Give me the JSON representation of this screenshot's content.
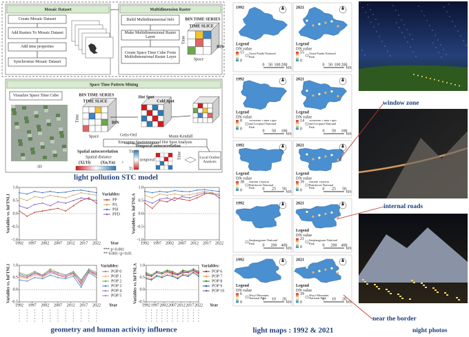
{
  "flowchart": {
    "mosaic": {
      "title": "Mosaic Dataset",
      "steps": [
        "Create Mosaic Dataset",
        "Add Rasters To Mosaic Dataset",
        "Add time properties",
        "Synchronize Mosaic Dataset"
      ]
    },
    "multidim": {
      "title": "Multidimension Raster",
      "steps": [
        "Build Multidimensional Info",
        "Make Multidimensional Raster Layer",
        "Create Space Time Cube From Multidimensional Raster Layer"
      ],
      "cube_labels": [
        "BIN TIME SERIES",
        "TIME SLICE",
        "BIN",
        "Time",
        "Space"
      ]
    },
    "mining": {
      "title": "Space Time Pattern Mining",
      "visualize": "Visualize Space Time Cube",
      "cube_labels": [
        "BIN TIME SERIES",
        "TIME SLICE",
        "BIN",
        "Time",
        "Space"
      ],
      "hot": "Hot Spot",
      "cold": "Cold Spot",
      "getis": "Getis-Ord",
      "mann": "Mann-Kendall",
      "emerging": "Emerging Spatiotemporal Hot Spot Analysis",
      "local": "Local Outlier Analysis",
      "spatial_auto": "Spatial autocorrelation",
      "temporal_auto": "Temporal autocorrelation",
      "spatial_distance": "Spatial distance",
      "xi": "(Xi,Yi)",
      "xn": "(Xn,Yn)",
      "temporal_distance": "temporal distance",
      "ti": "Ti",
      "tn": "Tn",
      "time": "Time",
      "label_3d": "3D",
      "plus": "+"
    },
    "caption": "light pollution STC model"
  },
  "chart_data": [
    {
      "type": "line",
      "ylabel": "Variables vs. lnFTNLI",
      "xlabel": "Year",
      "legend": "right",
      "legend_title": "Variables:",
      "notes": [
        "*** p<0.001",
        "** 0.001<p<0.01"
      ],
      "x": [
        1992,
        1995,
        1998,
        2001,
        2004,
        2007,
        2010,
        2013,
        2016,
        2019,
        2022
      ],
      "xlim": [
        1992,
        2022
      ],
      "xticks": [
        1992,
        1997,
        2002,
        2007,
        2012,
        2017,
        2022
      ],
      "ylim": [
        -1,
        1
      ],
      "yticks": [
        {
          "value": -1,
          "label": "-1.0"
        },
        {
          "value": -0.5,
          "label": "-0.5"
        },
        {
          "value": 0,
          "label": "0.0"
        },
        {
          "value": 0.5,
          "label": "0.5"
        },
        {
          "value": 1,
          "label": "1.0"
        }
      ],
      "series": [
        {
          "name": "PP",
          "color": "#c0392b",
          "values": [
            0.1,
            -0.1,
            0.05,
            0.1,
            0.15,
            0.2,
            0.1,
            0.3,
            0.5,
            0.6,
            0.4
          ]
        },
        {
          "name": "PA",
          "color": "#c9a15a",
          "values": [
            0.6,
            0.5,
            0.65,
            0.6,
            0.7,
            0.65,
            0.6,
            0.7,
            0.8,
            0.75,
            0.7
          ]
        },
        {
          "name": "PSI",
          "color": "#3a6fc4",
          "values": [
            0.8,
            0.75,
            0.85,
            0.8,
            0.85,
            0.8,
            0.82,
            0.88,
            0.9,
            0.85,
            0.8
          ]
        },
        {
          "name": "PFD",
          "color": "#7e57c2",
          "values": [
            0.3,
            0.2,
            0.35,
            0.4,
            0.3,
            0.45,
            0.4,
            0.5,
            0.6,
            0.55,
            0.5
          ]
        }
      ]
    },
    {
      "type": "line",
      "ylabel": "Variables vs. lnFTNLA",
      "legend": "none",
      "x": [
        1992,
        1995,
        1998,
        2001,
        2004,
        2007,
        2010,
        2013,
        2016,
        2019,
        2022
      ],
      "xlim": [
        1992,
        2022
      ],
      "xticks": [
        1992,
        1997,
        2002,
        2007,
        2012,
        2017,
        2022
      ],
      "ylim": [
        -1,
        1
      ],
      "yticks": [
        {
          "value": -1,
          "label": "-1.0"
        },
        {
          "value": -0.5,
          "label": "-0.5"
        },
        {
          "value": 0,
          "label": "0.0"
        },
        {
          "value": 0.5,
          "label": "0.5"
        },
        {
          "value": 1,
          "label": "1.0"
        }
      ],
      "series": [
        {
          "name": "PP",
          "color": "#c0392b",
          "values": [
            0.4,
            0.2,
            0.5,
            0.45,
            0.6,
            0.55,
            0.5,
            0.6,
            0.75,
            0.8,
            0.6
          ]
        },
        {
          "name": "PA",
          "color": "#c9a15a",
          "values": [
            0.7,
            0.6,
            0.75,
            0.7,
            0.75,
            0.7,
            0.72,
            0.78,
            0.85,
            0.8,
            0.75
          ]
        },
        {
          "name": "PSI",
          "color": "#3a6fc4",
          "values": [
            0.85,
            0.8,
            0.85,
            0.82,
            0.88,
            0.85,
            0.84,
            0.9,
            0.92,
            0.88,
            0.85
          ]
        },
        {
          "name": "PFD",
          "color": "#7e57c2",
          "values": [
            0.5,
            0.4,
            0.55,
            0.6,
            0.5,
            0.65,
            0.6,
            0.7,
            0.8,
            0.75,
            0.7
          ]
        }
      ]
    },
    {
      "type": "line",
      "ylabel": "Variables vs. lnFTNLI",
      "xlabel": "Year",
      "legend": "right",
      "legend_title": "Variables:",
      "x": [
        1992,
        1995,
        1998,
        2001,
        2004,
        2007,
        2010,
        2013,
        2016,
        2019,
        2022
      ],
      "xlim": [
        1992,
        2022
      ],
      "xticks": [
        1992,
        1997,
        2002,
        2007,
        2012,
        2017,
        2022
      ],
      "ylim": [
        -0.5,
        1
      ],
      "yticks": [
        {
          "value": -0.5,
          "label": "-0.5"
        },
        {
          "value": 0,
          "label": "0.0"
        },
        {
          "value": 0.5,
          "label": "0.5"
        },
        {
          "value": 1,
          "label": "1.0"
        }
      ],
      "series": [
        {
          "name": "POP 0",
          "color": "#e06666",
          "values": [
            0.6,
            0.5,
            0.7,
            0.55,
            0.8,
            0.6,
            0.5,
            0.7,
            0.2,
            0.8,
            0.6
          ]
        },
        {
          "name": "POP 1",
          "color": "#f6b26b",
          "values": [
            0.5,
            0.45,
            0.6,
            0.5,
            0.7,
            0.65,
            0.55,
            0.6,
            0.3,
            0.75,
            0.55
          ]
        },
        {
          "name": "POP 2",
          "color": "#6aa84f",
          "values": [
            0.7,
            0.6,
            0.75,
            0.6,
            0.85,
            0.7,
            0.6,
            0.75,
            0.4,
            0.85,
            0.7
          ]
        },
        {
          "name": "POP 3",
          "color": "#3d85c6",
          "values": [
            0.4,
            0.35,
            0.5,
            0.45,
            0.6,
            0.5,
            0.45,
            0.55,
            0.1,
            0.7,
            0.5
          ]
        },
        {
          "name": "POP 4",
          "color": "#8e7cc3",
          "values": [
            0.65,
            0.55,
            0.7,
            0.6,
            0.75,
            0.7,
            0.6,
            0.7,
            0.35,
            0.8,
            0.65
          ]
        },
        {
          "name": "POP 5",
          "color": "#c27ba0",
          "values": [
            0.55,
            0.5,
            0.65,
            0.55,
            0.7,
            0.6,
            0.55,
            0.65,
            0.25,
            0.75,
            0.6
          ]
        }
      ]
    },
    {
      "type": "line",
      "ylabel": "Variables vs. lnFTNLA",
      "xlabel": "Year",
      "legend": "right",
      "legend_title": "Variables:",
      "x": [
        1992,
        1995,
        1998,
        2001,
        2004,
        2007,
        2010,
        2013,
        2016,
        2019,
        2022
      ],
      "xlim": [
        1992,
        2022
      ],
      "xticks": [
        1992,
        1997,
        2002,
        2007,
        2012,
        2017,
        2022
      ],
      "ylim": [
        -0.5,
        1
      ],
      "yticks": [
        {
          "value": -0.5,
          "label": "-0.5"
        },
        {
          "value": 0,
          "label": "0.0"
        },
        {
          "value": 0.5,
          "label": "0.5"
        },
        {
          "value": 1,
          "label": "1.0"
        }
      ],
      "series": [
        {
          "name": "POP 6",
          "color": "#cc0000",
          "values": [
            0.6,
            0.55,
            0.7,
            0.65,
            0.75,
            0.7,
            0.6,
            0.75,
            0.7,
            0.8,
            0.7
          ]
        },
        {
          "name": "POP 7",
          "color": "#e69138",
          "values": [
            0.5,
            0.45,
            0.6,
            0.55,
            0.7,
            0.6,
            0.5,
            0.65,
            0.6,
            0.75,
            0.6
          ]
        },
        {
          "name": "POP 8",
          "color": "#38761d",
          "values": [
            0.7,
            0.6,
            0.75,
            0.7,
            0.8,
            0.75,
            0.65,
            0.8,
            0.75,
            0.85,
            0.75
          ]
        },
        {
          "name": "POP 9",
          "color": "#0b5394",
          "values": [
            0.45,
            0.4,
            0.55,
            0.5,
            0.6,
            0.55,
            0.45,
            0.6,
            0.55,
            0.7,
            0.55
          ]
        },
        {
          "name": "POP 10",
          "color": "#674ea7",
          "values": [
            0.65,
            0.55,
            0.7,
            0.65,
            0.75,
            0.65,
            0.6,
            0.7,
            0.7,
            0.8,
            0.65
          ]
        }
      ]
    }
  ],
  "charts_caption": "geometry and human activity influence",
  "maps": {
    "legend": "Legend",
    "dn": "DN value",
    "unit": "km",
    "caption": "light maps : 1992 & 2021",
    "rows": [
      {
        "park": "Giant Panda National Park",
        "scale": [
          0,
          50,
          100,
          200
        ],
        "left": {
          "year": "1992",
          "max": 15,
          "min": 0
        },
        "right": {
          "year": "2021",
          "max": 55,
          "min": 0
        }
      },
      {
        "park": "Northeast China Tiger and Leopard National Park",
        "scale": [
          0,
          50,
          100
        ],
        "left": {
          "year": "1992",
          "max": 8,
          "min": 0
        },
        "right": {
          "year": "2021",
          "max": 14,
          "min": 0
        }
      },
      {
        "park": "Hainan Tropical Rainforest National Park",
        "scale": [
          0,
          25,
          50
        ],
        "left": {
          "year": "1992",
          "max": 38,
          "min": 0
        },
        "right": {
          "year": "2021",
          "max": 39,
          "min": 0
        }
      },
      {
        "park": "Sanjiangyuan National Park",
        "scale": [
          0,
          200,
          400
        ],
        "left": {
          "year": "1992"
        },
        "right": {
          "year": "2021",
          "max": 21,
          "min": 0
        }
      },
      {
        "park": "Wuyi Mountain National Park",
        "scale": [
          0,
          10,
          20
        ],
        "left": {
          "year": "1992",
          "max": 6,
          "min": 0
        },
        "right": {
          "year": "2021",
          "max": 39,
          "min": 0
        }
      }
    ]
  },
  "photos": {
    "labels": [
      "window zone",
      "internal roads",
      "near the border"
    ],
    "caption": "night photos"
  }
}
